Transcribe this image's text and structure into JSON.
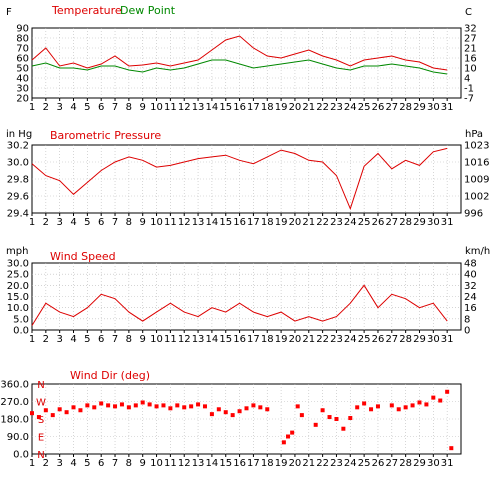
{
  "chart_data": [
    {
      "type": "line",
      "title": "Temperature",
      "title2": "Dew Point",
      "left_unit": "F",
      "right_unit": "C",
      "x": [
        1,
        2,
        3,
        4,
        5,
        6,
        7,
        8,
        9,
        10,
        11,
        12,
        13,
        14,
        15,
        16,
        17,
        18,
        19,
        20,
        21,
        22,
        23,
        24,
        25,
        26,
        27,
        28,
        29,
        30,
        31
      ],
      "x_ticks": [
        "1",
        "2",
        "3",
        "4",
        "5",
        "6",
        "7",
        "8",
        "9",
        "10",
        "11",
        "12",
        "13",
        "14",
        "15",
        "16",
        "17",
        "18",
        "19",
        "20",
        "21",
        "22",
        "23",
        "24",
        "25",
        "26",
        "27",
        "28",
        "29",
        "30",
        "31"
      ],
      "ylim": [
        20,
        90
      ],
      "y_ticks": [
        "90",
        "80",
        "70",
        "60",
        "50",
        "40",
        "30",
        "20"
      ],
      "right_ticks": [
        "32",
        "27",
        "21",
        "16",
        "10",
        "4",
        "-1",
        "-7"
      ],
      "series": [
        {
          "name": "Temperature",
          "color": "#dd0000",
          "values": [
            58,
            70,
            52,
            55,
            50,
            54,
            62,
            52,
            53,
            55,
            52,
            55,
            58,
            68,
            78,
            82,
            70,
            62,
            60,
            64,
            68,
            62,
            58,
            52,
            58,
            60,
            62,
            58,
            56,
            50,
            48
          ]
        },
        {
          "name": "Dew Point",
          "color": "#008800",
          "values": [
            52,
            55,
            50,
            50,
            48,
            52,
            52,
            48,
            46,
            50,
            48,
            50,
            54,
            58,
            58,
            54,
            50,
            52,
            54,
            56,
            58,
            54,
            50,
            48,
            52,
            52,
            54,
            52,
            50,
            46,
            44
          ]
        }
      ]
    },
    {
      "type": "line",
      "title": "Barometric Pressure",
      "left_unit": "in Hg",
      "right_unit": "hPa",
      "x": [
        1,
        2,
        3,
        4,
        5,
        6,
        7,
        8,
        9,
        10,
        11,
        12,
        13,
        14,
        15,
        16,
        17,
        18,
        19,
        20,
        21,
        22,
        23,
        24,
        25,
        26,
        27,
        28,
        29,
        30,
        31
      ],
      "x_ticks": [
        "1",
        "2",
        "3",
        "4",
        "5",
        "6",
        "7",
        "8",
        "9",
        "10",
        "11",
        "12",
        "13",
        "14",
        "15",
        "16",
        "17",
        "18",
        "19",
        "20",
        "21",
        "22",
        "23",
        "24",
        "25",
        "26",
        "27",
        "28",
        "29",
        "30",
        "31"
      ],
      "ylim": [
        29.4,
        30.2
      ],
      "y_ticks": [
        "30.2",
        "30.0",
        "29.8",
        "29.6",
        "29.4"
      ],
      "right_ticks": [
        "1023",
        "1016",
        "1009",
        "1002",
        "996"
      ],
      "series": [
        {
          "name": "Barometric Pressure",
          "color": "#dd0000",
          "values": [
            29.98,
            29.84,
            29.78,
            29.62,
            29.76,
            29.9,
            30.0,
            30.06,
            30.02,
            29.94,
            29.96,
            30.0,
            30.04,
            30.06,
            30.08,
            30.02,
            29.98,
            30.06,
            30.14,
            30.1,
            30.02,
            30.0,
            29.84,
            29.45,
            29.95,
            30.1,
            29.92,
            30.02,
            29.96,
            30.12,
            30.16
          ]
        }
      ]
    },
    {
      "type": "line",
      "title": "Wind Speed",
      "left_unit": "mph",
      "right_unit": "km/h",
      "x": [
        1,
        2,
        3,
        4,
        5,
        6,
        7,
        8,
        9,
        10,
        11,
        12,
        13,
        14,
        15,
        16,
        17,
        18,
        19,
        20,
        21,
        22,
        23,
        24,
        25,
        26,
        27,
        28,
        29,
        30,
        31
      ],
      "x_ticks": [
        "1",
        "2",
        "3",
        "4",
        "5",
        "6",
        "7",
        "8",
        "9",
        "10",
        "11",
        "12",
        "13",
        "14",
        "15",
        "16",
        "17",
        "18",
        "19",
        "20",
        "21",
        "22",
        "23",
        "24",
        "25",
        "26",
        "27",
        "28",
        "29",
        "30",
        "31"
      ],
      "ylim": [
        0,
        30
      ],
      "y_ticks": [
        "30.0",
        "25.0",
        "20.0",
        "15.0",
        "10.0",
        "5.0",
        "0.0"
      ],
      "right_ticks": [
        "48",
        "40",
        "32",
        "24",
        "16",
        "8",
        "0"
      ],
      "series": [
        {
          "name": "Wind Speed",
          "color": "#dd0000",
          "values": [
            2,
            12,
            8,
            6,
            10,
            16,
            14,
            8,
            4,
            8,
            12,
            8,
            6,
            10,
            8,
            12,
            8,
            6,
            8,
            4,
            6,
            4,
            6,
            12,
            20,
            10,
            16,
            14,
            10,
            12,
            4
          ]
        }
      ]
    },
    {
      "type": "scatter",
      "title": "Wind Dir (deg)",
      "x": [
        1,
        1.5,
        2,
        2.5,
        3,
        3.5,
        4,
        4.5,
        5,
        5.5,
        6,
        6.5,
        7,
        7.5,
        8,
        8.5,
        9,
        9.5,
        10,
        10.5,
        11,
        11.5,
        12,
        12.5,
        13,
        13.5,
        14,
        14.5,
        15,
        15.5,
        16,
        16.5,
        17,
        17.5,
        18,
        19.2,
        19.5,
        19.8,
        20.2,
        20.5,
        21.5,
        22,
        22.5,
        23,
        23.5,
        24,
        24.5,
        25,
        25.5,
        26,
        27,
        27.5,
        28,
        28.5,
        29,
        29.5,
        30,
        30.5,
        31,
        31.3
      ],
      "x_ticks": [
        "1",
        "2",
        "3",
        "4",
        "5",
        "6",
        "7",
        "8",
        "9",
        "10",
        "11",
        "12",
        "13",
        "14",
        "15",
        "16",
        "17",
        "18",
        "19",
        "20",
        "21",
        "22",
        "23",
        "24",
        "25",
        "26",
        "27",
        "28",
        "29",
        "30",
        "31"
      ],
      "ylim": [
        0,
        360
      ],
      "y_ticks": [
        "360.0",
        "270.0",
        "180.0",
        "90.0",
        "0.0"
      ],
      "compass": [
        "N",
        "W",
        "S",
        "E",
        "N"
      ],
      "series": [
        {
          "name": "Wind Dir (deg)",
          "color": "#ff0000",
          "values": [
            210,
            190,
            225,
            200,
            230,
            215,
            240,
            225,
            250,
            240,
            260,
            250,
            245,
            255,
            240,
            250,
            265,
            255,
            245,
            250,
            235,
            250,
            240,
            245,
            255,
            245,
            205,
            230,
            215,
            200,
            220,
            235,
            250,
            240,
            230,
            60,
            90,
            110,
            245,
            200,
            150,
            225,
            190,
            180,
            130,
            185,
            240,
            260,
            230,
            245,
            250,
            230,
            240,
            250,
            265,
            255,
            290,
            275,
            320,
            30
          ]
        }
      ]
    }
  ]
}
